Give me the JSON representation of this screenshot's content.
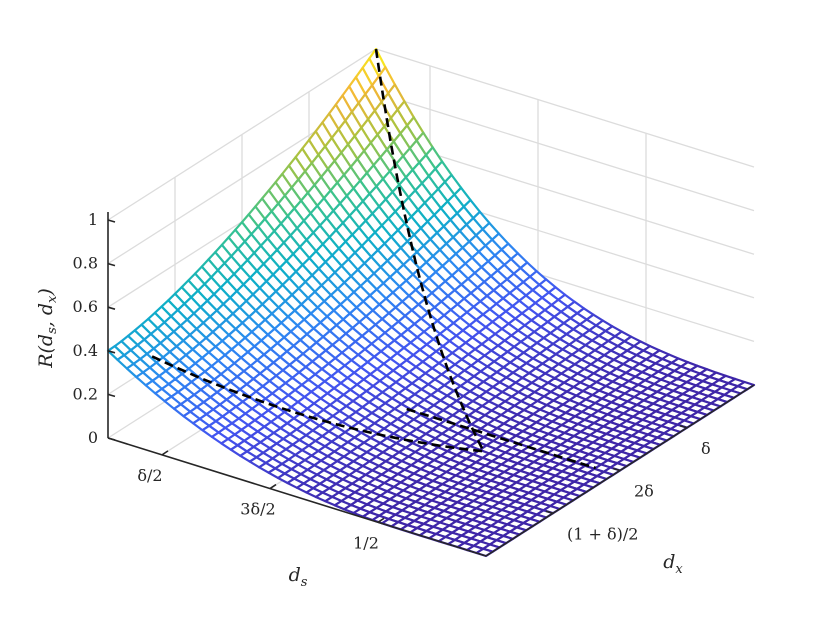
{
  "chart_data": {
    "type": "surface",
    "title": "",
    "xlabel": "d_x",
    "ylabel": "d_s",
    "zlabel": "R(d_s, d_x)",
    "xlabel_parts": {
      "main": "d",
      "sub": "x"
    },
    "ylabel_parts": {
      "main": "d",
      "sub": "s"
    },
    "zlabel_parts": {
      "main": "R(d",
      "sub1": "s",
      "sep": ", d",
      "sub2": "x",
      "end": ")"
    },
    "zlim": [
      0,
      1
    ],
    "z_ticks": [
      {
        "value": 0,
        "label": "0"
      },
      {
        "value": 0.2,
        "label": "0.2"
      },
      {
        "value": 0.4,
        "label": "0.4"
      },
      {
        "value": 0.6,
        "label": "0.6"
      },
      {
        "value": 0.8,
        "label": "0.8"
      },
      {
        "value": 1,
        "label": "1"
      }
    ],
    "ds_ticks": [
      {
        "value": 0.1,
        "label": "δ/2"
      },
      {
        "value": 0.3,
        "label": "3δ/2"
      },
      {
        "value": 0.5,
        "label": "1/2"
      }
    ],
    "dx_ticks": [
      {
        "value": 0.2,
        "label": "δ"
      },
      {
        "value": 0.4,
        "label": "2δ"
      },
      {
        "value": 0.6,
        "label": "(1 + δ)/2"
      }
    ],
    "ds_range": [
      0,
      0.7
    ],
    "dx_range": [
      0,
      0.8
    ],
    "grid": true,
    "colormap": "parula",
    "colormap_stops": [
      "#3e26a8",
      "#4354f0",
      "#2d88f2",
      "#0eafc8",
      "#38c38f",
      "#a9c33f",
      "#f3b637",
      "#f9fb15"
    ],
    "surface": {
      "ds_samples": 40,
      "dx_samples": 40,
      "corners": {
        "ds_min_dx_min": 0.4,
        "ds_max_dx_min": 0.0,
        "ds_min_dx_max": 1.0,
        "ds_max_dx_max": 0.0
      }
    },
    "dashed_lines_color": "#000000"
  }
}
